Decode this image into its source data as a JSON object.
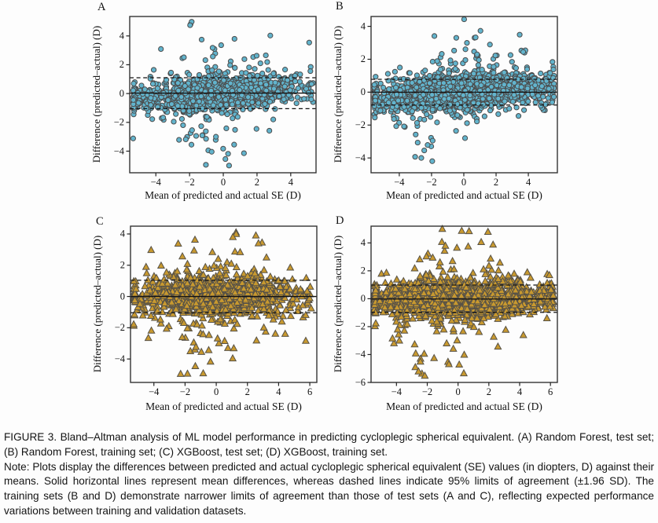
{
  "figure": {
    "caption": "FIGURE 3. Bland–Altman analysis of ML model performance in predicting cycloplegic spherical equivalent. (A) Random Forest, test set; (B) Random Forest, training set; (C) XGBoost, test set; (D) XGBoost, training set.",
    "note": "Note: Plots display the differences between predicted and actual cycloplegic spherical equivalent (SE) values (in diopters, D) against their means. Solid horizontal lines represent mean differences, whereas dashed lines indicate 95% limits of agreement (±1.96 SD). The training sets (B and D) demonstrate narrower limits of agreement than those of test sets (A and C), reflecting expected performance variations between training and validation datasets."
  },
  "chart_data": [
    {
      "type": "scatter",
      "id": "A",
      "letter": "A",
      "model": "Random Forest",
      "dataset": "test set",
      "marker": "circle",
      "marker_fill": "#62b4cd",
      "marker_stroke": "#4c4c4c",
      "xlabel": "Mean of predicted and actual SE (D)",
      "ylabel": "Difference (predicted–actual) (D)",
      "xlim": [
        -5.55,
        5.5
      ],
      "ylim": [
        -5.5,
        5.35
      ],
      "xticks": [
        -4,
        -2,
        0,
        2,
        4
      ],
      "yticks": [
        -4,
        -2,
        0,
        2,
        4
      ],
      "mean_diff": 0.03,
      "loa_upper": 1.1,
      "loa_lower": -1.05,
      "n_points": 1400,
      "seed": 101,
      "x_mean": -0.5,
      "x_sd": 2.4,
      "x_min": -5.35,
      "x_max": 5.35,
      "y_sd": 0.55,
      "slope": 0.09,
      "tail_frac": 0.15,
      "tail_mult": 2.1,
      "outliers": [
        {
          "n": 14,
          "x": [
            -2.5,
            3.0
          ],
          "y": [
            2.3,
            4.1
          ]
        },
        {
          "n": 3,
          "x": [
            -2.2,
            1.8
          ],
          "y": [
            4.0,
            5.1
          ]
        },
        {
          "n": 16,
          "x": [
            -2.8,
            2.0
          ],
          "y": [
            -4.3,
            -2.3
          ]
        },
        {
          "n": 3,
          "x": [
            -1.6,
            0.5
          ],
          "y": [
            -5.3,
            -4.4
          ]
        }
      ]
    },
    {
      "type": "scatter",
      "id": "B",
      "letter": "B",
      "model": "Random Forest",
      "dataset": "training set",
      "marker": "circle",
      "marker_fill": "#62b4cd",
      "marker_stroke": "#4c4c4c",
      "xlabel": "Mean of predicted and actual SE (D)",
      "ylabel": "Difference (predicted–actual) (D)",
      "xlim": [
        -5.75,
        5.8
      ],
      "ylim": [
        -4.9,
        4.6
      ],
      "xticks": [
        -4,
        -2,
        0,
        2,
        4
      ],
      "yticks": [
        -4,
        -2,
        0,
        2,
        4
      ],
      "mean_diff": 0.0,
      "loa_upper": 0.78,
      "loa_lower": -0.78,
      "n_points": 2600,
      "seed": 202,
      "x_mean": -0.3,
      "x_sd": 2.6,
      "x_min": -5.55,
      "x_max": 5.6,
      "y_sd": 0.42,
      "slope": 0.07,
      "tail_frac": 0.15,
      "tail_mult": 2.2,
      "outliers": [
        {
          "n": 12,
          "x": [
            -2.0,
            2.2
          ],
          "y": [
            2.2,
            4.45
          ]
        },
        {
          "n": 10,
          "x": [
            -3.3,
            -1.6
          ],
          "y": [
            -4.4,
            -2.4
          ]
        },
        {
          "n": 5,
          "x": [
            3.4,
            4.7
          ],
          "y": [
            2.0,
            3.7
          ]
        },
        {
          "n": 4,
          "x": [
            -4.5,
            -3.6
          ],
          "y": [
            -2.9,
            -1.8
          ]
        }
      ]
    },
    {
      "type": "scatter",
      "id": "C",
      "letter": "C",
      "model": "XGBoost",
      "dataset": "test set",
      "marker": "triangle",
      "marker_fill": "#c8992f",
      "marker_stroke": "#575247",
      "xlabel": "Mean of predicted and actual SE (D)",
      "ylabel": "Difference (predicted–actual) (D)",
      "xlim": [
        -5.5,
        6.45
      ],
      "ylim": [
        -5.5,
        4.5
      ],
      "xticks": [
        -4,
        -2,
        0,
        2,
        4,
        6
      ],
      "yticks": [
        -4,
        -2,
        0,
        2,
        4
      ],
      "mean_diff": 0.0,
      "loa_upper": 1.04,
      "loa_lower": -1.04,
      "n_points": 1300,
      "seed": 303,
      "x_mean": 0.0,
      "x_sd": 2.5,
      "x_min": -5.3,
      "x_max": 6.1,
      "y_sd": 0.55,
      "slope": 0.01,
      "tail_frac": 0.16,
      "tail_mult": 2.2,
      "outliers": [
        {
          "n": 10,
          "x": [
            -3.2,
            3.2
          ],
          "y": [
            2.3,
            4.1
          ]
        },
        {
          "n": 14,
          "x": [
            -2.5,
            1.2
          ],
          "y": [
            -4.2,
            -2.6
          ]
        },
        {
          "n": 4,
          "x": [
            -2.3,
            0.6
          ],
          "y": [
            -5.2,
            -4.4
          ]
        }
      ]
    },
    {
      "type": "scatter",
      "id": "D",
      "letter": "D",
      "model": "XGBoost",
      "dataset": "training set",
      "marker": "triangle",
      "marker_fill": "#c8992f",
      "marker_stroke": "#575247",
      "xlabel": "Mean of predicted and actual SE (D)",
      "ylabel": "Difference (predicted–actual) (D)",
      "xlim": [
        -5.65,
        6.45
      ],
      "ylim": [
        -6.0,
        5.2
      ],
      "xticks": [
        -4,
        -2,
        0,
        2,
        4,
        6
      ],
      "yticks": [
        -6,
        -4,
        -2,
        0,
        2,
        4
      ],
      "mean_diff": -0.02,
      "loa_upper": 0.98,
      "loa_lower": -0.98,
      "n_points": 2600,
      "seed": 404,
      "x_mean": 0.1,
      "x_sd": 2.6,
      "x_min": -5.45,
      "x_max": 6.2,
      "y_sd": 0.5,
      "slope": 0.005,
      "tail_frac": 0.17,
      "tail_mult": 2.3,
      "outliers": [
        {
          "n": 12,
          "x": [
            -2.5,
            2.0
          ],
          "y": [
            2.8,
            5.1
          ]
        },
        {
          "n": 16,
          "x": [
            -2.8,
            0.5
          ],
          "y": [
            -5.6,
            -3.2
          ]
        },
        {
          "n": 6,
          "x": [
            -4.6,
            -3.4
          ],
          "y": [
            -3.2,
            -2.2
          ]
        }
      ]
    }
  ]
}
